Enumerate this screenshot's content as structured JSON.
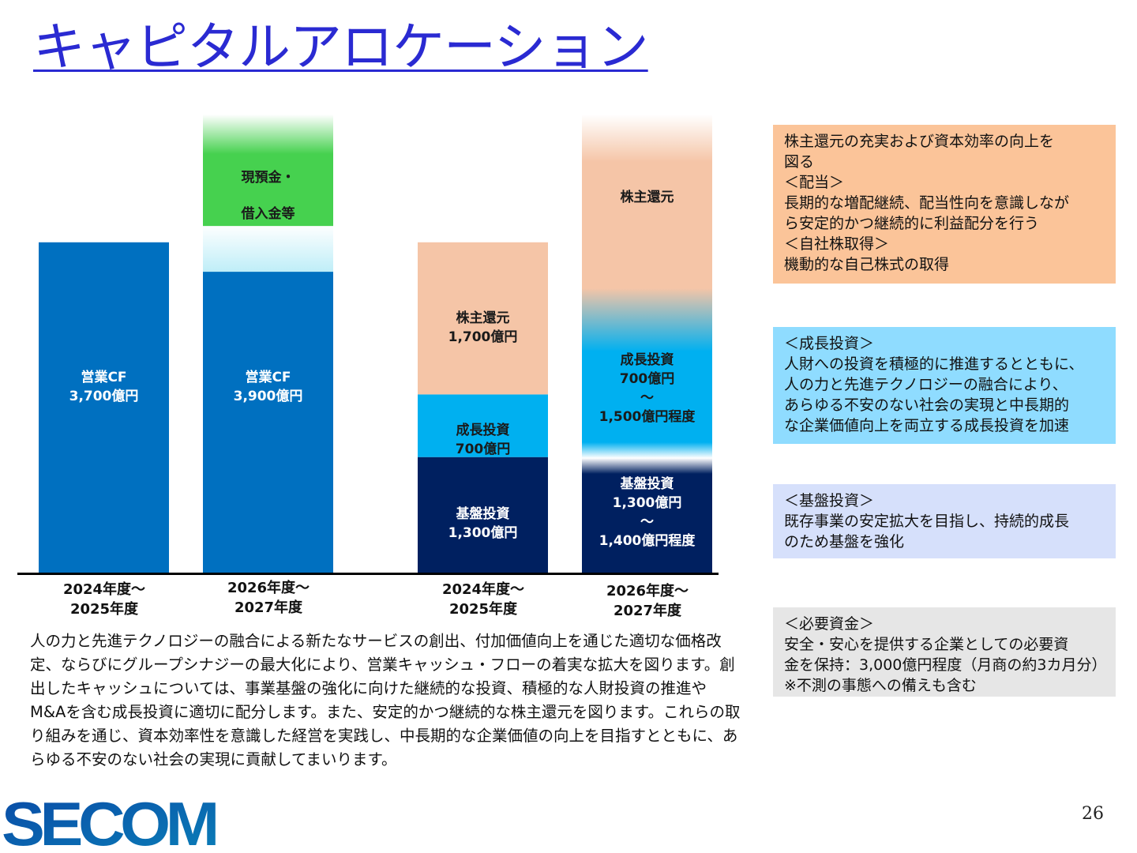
{
  "title": "キャピタルアロケーション",
  "colors": {
    "title": "#2a2ad2",
    "operating_cf": "#0070c0",
    "cash_borrowing": "#46d14f",
    "shareholder_returns": "#f5c5a7",
    "growth_investment": "#00b0f0",
    "base_investment": "#002060"
  },
  "chart_data": {
    "type": "bar",
    "unit": "億円",
    "groups": [
      {
        "name": "sources",
        "bars": [
          {
            "period": "2024年度～\n2025年度",
            "segments": [
              {
                "name": "営業CF",
                "value": 3700,
                "label": "営業CF\n3,700億円",
                "color": "#0070c0"
              }
            ]
          },
          {
            "period": "2026年度～\n2027年度",
            "segments": [
              {
                "name": "営業CF",
                "value": 3900,
                "label": "営業CF\n3,900億円",
                "color": "#0070c0"
              },
              {
                "name": "現預金・借入金等",
                "value": null,
                "label": "現預金・\n借入金等",
                "color": "#46d14f"
              }
            ]
          }
        ]
      },
      {
        "name": "uses",
        "bars": [
          {
            "period": "2024年度～\n2025年度",
            "segments": [
              {
                "name": "基盤投資",
                "value": 1300,
                "label": "基盤投資\n1,300億円",
                "color": "#002060"
              },
              {
                "name": "成長投資",
                "value": 700,
                "label": "成長投資\n700億円",
                "color": "#00b0f0"
              },
              {
                "name": "株主還元",
                "value": 1700,
                "label": "株主還元\n1,700億円",
                "color": "#f5c5a7"
              }
            ]
          },
          {
            "period": "2026年度～\n2027年度",
            "segments": [
              {
                "name": "基盤投資",
                "value_range": [
                  1300,
                  1400
                ],
                "label": "基盤投資\n1,300億円\n～\n1,400億円程度",
                "color": "#002060"
              },
              {
                "name": "成長投資",
                "value_range": [
                  700,
                  1500
                ],
                "label": "成長投資\n700億円\n～\n1,500億円程度",
                "color": "#00b0f0"
              },
              {
                "name": "株主還元",
                "value": null,
                "label": "株主還元",
                "color": "#f5c5a7"
              }
            ]
          }
        ]
      }
    ]
  },
  "description": "人の力と先進テクノロジーの融合による新たなサービスの創出、付加価値向上を通じた適切な価格改定、ならびにグループシナジーの最大化により、営業キャッシュ・フローの着実な拡大を図ります。創出したキャッシュについては、事業基盤の強化に向けた継続的な投資、積極的な人財投資の推進やM&Aを含む成長投資に適切に配分します。また、安定的かつ継続的な株主還元を図ります。これらの取り組みを通じ、資本効率性を意識した経営を実践し、中長期的な企業価値の向上を目指すとともに、あらゆる不安のない社会の実現に貢献してまいります。",
  "notes": {
    "shareholder": {
      "lines": [
        "株主還元の充実および資本効率の向上を",
        "図る",
        "＜配当＞",
        "長期的な増配継続、配当性向を意識しなが",
        "ら安定的かつ継続的に利益配分を行う",
        "＜自社株取得＞",
        "機動的な自己株式の取得"
      ],
      "color": "#fbc499"
    },
    "growth": {
      "lines": [
        "＜成長投資＞",
        "人財への投資を積極的に推進するとともに、",
        "人の力と先進テクノロジーの融合により、",
        "あらゆる不安のない社会の実現と中長期的",
        "な企業価値向上を両立する成長投資を加速"
      ],
      "color": "#8fdcff"
    },
    "base": {
      "lines": [
        "＜基盤投資＞",
        "既存事業の安定拡大を目指し、持続的成長",
        "のため基盤を強化"
      ],
      "color": "#d6e0fb"
    },
    "required": {
      "lines": [
        "＜必要資金＞",
        "安全・安心を提供する企業としての必要資",
        "金を保持：3,000億円程度（月商の約3カ月分）",
        "※不測の事態への備えも含む"
      ],
      "color": "#e6e6e6"
    }
  },
  "logo": "SECOM",
  "page_number": "26"
}
